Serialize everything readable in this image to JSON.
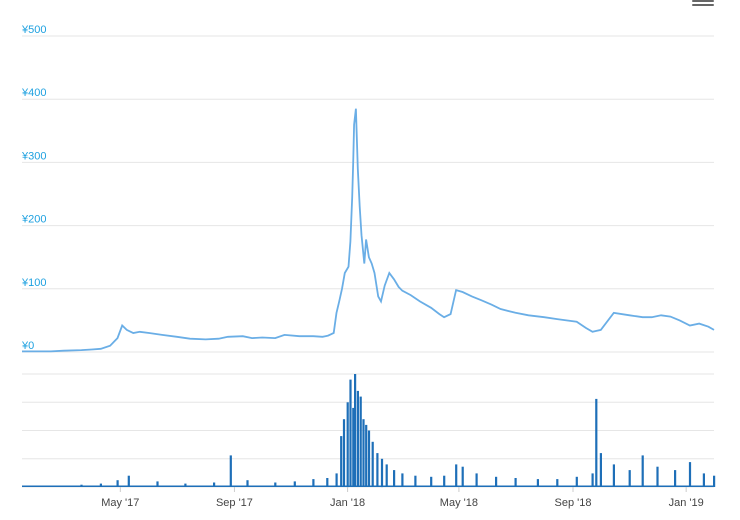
{
  "colors": {
    "price_line": "#6aaee6",
    "volume_bar": "#1e6fb8",
    "y_label": "#1ea1e0",
    "x_label": "#444444",
    "grid": "#e6e6e6",
    "menu": "#666666"
  },
  "menu": {
    "icon": "hamburger-menu-icon"
  },
  "chart_data": [
    {
      "type": "line",
      "currency": "¥",
      "x_range": [
        "2017-01-15",
        "2019-01-31"
      ],
      "ylim": [
        0,
        500
      ],
      "y_ticks": [
        0,
        100,
        200,
        300,
        400,
        500
      ],
      "y_tick_labels": [
        "¥0",
        "¥100",
        "¥200",
        "¥300",
        "¥400",
        "¥500"
      ],
      "grid": true,
      "series": [
        {
          "x": [
            "2017-01-15",
            "2017-02-15",
            "2017-03-01",
            "2017-03-20",
            "2017-03-31",
            "2017-04-10",
            "2017-04-20",
            "2017-04-28",
            "2017-05-03",
            "2017-05-08",
            "2017-05-15",
            "2017-05-22",
            "2017-06-01",
            "2017-06-15",
            "2017-07-01",
            "2017-07-15",
            "2017-08-01",
            "2017-08-15",
            "2017-08-25",
            "2017-09-10",
            "2017-09-20",
            "2017-10-01",
            "2017-10-15",
            "2017-10-25",
            "2017-11-10",
            "2017-11-25",
            "2017-12-05",
            "2017-12-08",
            "2017-12-11",
            "2017-12-14",
            "2017-12-17",
            "2017-12-20",
            "2017-12-23",
            "2017-12-26",
            "2017-12-29",
            "2018-01-02",
            "2018-01-04",
            "2018-01-06",
            "2018-01-07",
            "2018-01-08",
            "2018-01-10",
            "2018-01-12",
            "2018-01-14",
            "2018-01-16",
            "2018-01-19",
            "2018-01-21",
            "2018-01-24",
            "2018-01-27",
            "2018-01-30",
            "2018-02-03",
            "2018-02-06",
            "2018-02-10",
            "2018-02-15",
            "2018-02-20",
            "2018-02-25",
            "2018-03-01",
            "2018-03-10",
            "2018-03-20",
            "2018-04-01",
            "2018-04-10",
            "2018-04-15",
            "2018-04-22",
            "2018-04-28",
            "2018-05-05",
            "2018-05-15",
            "2018-05-25",
            "2018-06-05",
            "2018-06-15",
            "2018-07-01",
            "2018-07-15",
            "2018-08-01",
            "2018-08-15",
            "2018-08-25",
            "2018-09-05",
            "2018-09-15",
            "2018-09-22",
            "2018-09-25",
            "2018-10-01",
            "2018-10-15",
            "2018-11-01",
            "2018-11-15",
            "2018-11-25",
            "2018-12-05",
            "2018-12-15",
            "2018-12-25",
            "2019-01-05",
            "2019-01-15",
            "2019-01-25",
            "2019-01-31"
          ],
          "y": [
            1,
            1,
            2,
            3,
            4,
            5,
            10,
            22,
            42,
            35,
            30,
            32,
            30,
            27,
            24,
            21,
            20,
            21,
            24,
            25,
            22,
            23,
            22,
            27,
            25,
            25,
            24,
            25,
            26,
            28,
            30,
            62,
            80,
            100,
            125,
            135,
            175,
            245,
            300,
            360,
            385,
            290,
            230,
            185,
            140,
            178,
            150,
            140,
            125,
            88,
            80,
            105,
            125,
            115,
            103,
            97,
            90,
            80,
            70,
            60,
            55,
            60,
            98,
            95,
            88,
            82,
            75,
            68,
            62,
            58,
            55,
            52,
            50,
            48,
            38,
            32,
            33,
            35,
            62,
            58,
            55,
            55,
            58,
            56,
            50,
            42,
            45,
            40,
            35
          ]
        }
      ]
    },
    {
      "type": "bar",
      "ylim": [
        0,
        100
      ],
      "grid": true,
      "x_tick_labels": [
        "May '17",
        "Sep '17",
        "Jan '18",
        "May '18",
        "Sep '18",
        "Jan '19"
      ],
      "series": [
        {
          "x": [
            "2017-03-01",
            "2017-03-20",
            "2017-04-10",
            "2017-04-28",
            "2017-05-10",
            "2017-06-10",
            "2017-07-10",
            "2017-08-10",
            "2017-08-28",
            "2017-09-15",
            "2017-10-15",
            "2017-11-05",
            "2017-11-25",
            "2017-12-10",
            "2017-12-20",
            "2017-12-25",
            "2017-12-28",
            "2018-01-01",
            "2018-01-04",
            "2018-01-07",
            "2018-01-09",
            "2018-01-12",
            "2018-01-15",
            "2018-01-18",
            "2018-01-21",
            "2018-01-24",
            "2018-01-28",
            "2018-02-02",
            "2018-02-07",
            "2018-02-12",
            "2018-02-20",
            "2018-03-01",
            "2018-03-15",
            "2018-04-01",
            "2018-04-15",
            "2018-04-28",
            "2018-05-05",
            "2018-05-20",
            "2018-06-10",
            "2018-07-01",
            "2018-07-25",
            "2018-08-15",
            "2018-09-05",
            "2018-09-22",
            "2018-09-26",
            "2018-10-01",
            "2018-10-15",
            "2018-11-01",
            "2018-11-15",
            "2018-12-01",
            "2018-12-20",
            "2019-01-05",
            "2019-01-20",
            "2019-01-31"
          ],
          "values": [
            1,
            2,
            3,
            6,
            10,
            5,
            3,
            4,
            28,
            6,
            4,
            5,
            7,
            8,
            12,
            45,
            60,
            75,
            95,
            70,
            100,
            85,
            80,
            60,
            55,
            50,
            40,
            30,
            25,
            20,
            15,
            12,
            10,
            9,
            10,
            20,
            18,
            12,
            9,
            8,
            7,
            7,
            9,
            12,
            78,
            30,
            20,
            15,
            28,
            18,
            15,
            22,
            12,
            10
          ]
        }
      ]
    }
  ]
}
